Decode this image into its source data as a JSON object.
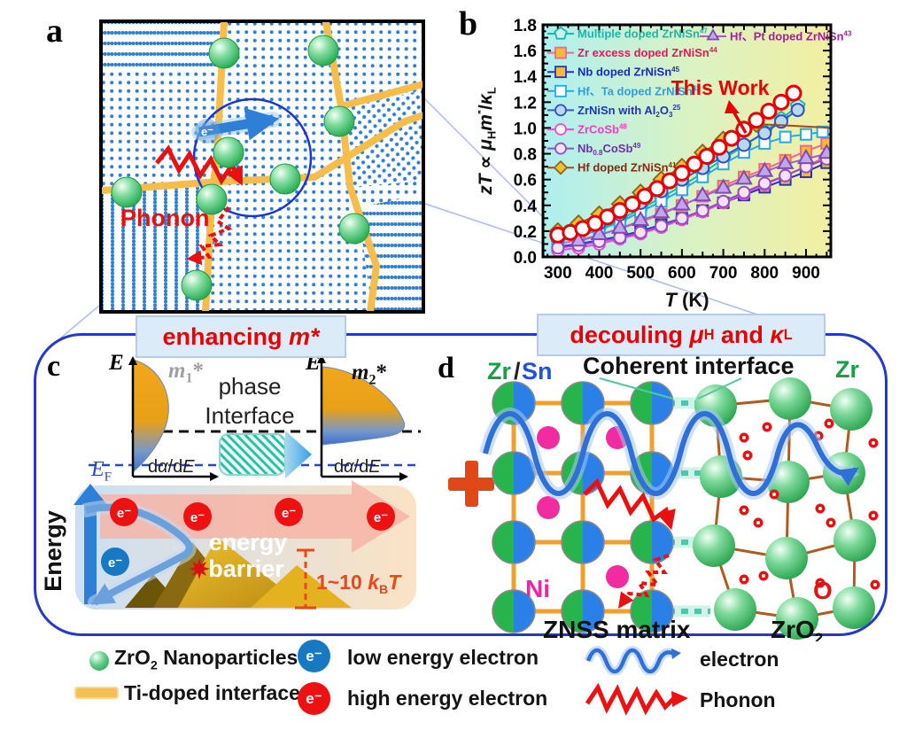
{
  "symbols": {
    "electron": "e⁻"
  },
  "panel_a": {
    "label": "a",
    "phonon": "Phonon"
  },
  "panel_b": {
    "label": "b"
  },
  "panel_c": {
    "label": "c",
    "e_axis": "E",
    "m1_segments": [
      {
        "t": "m",
        "i": true,
        "b": true
      },
      {
        "t": "1",
        "sub": true,
        "b": true
      },
      {
        "t": "*",
        "b": true
      }
    ],
    "m2_segments": [
      {
        "t": "m",
        "i": true,
        "b": true
      },
      {
        "t": "2",
        "sub": true,
        "b": true
      },
      {
        "t": "*",
        "b": true
      }
    ],
    "phase1": "phase",
    "phase2": "Interface",
    "dade_segments": [
      {
        "t": "d"
      },
      {
        "t": "α",
        "i": true
      },
      {
        "t": "/d"
      },
      {
        "t": "E",
        "i": true
      }
    ],
    "ef_segments": [
      {
        "t": "E",
        "i": true
      },
      {
        "t": "F",
        "sub": true
      }
    ],
    "energy": "Energy",
    "barrier1": "energy",
    "barrier2": "barrier",
    "kbt_segments": [
      {
        "t": "1~10 ",
        "b": true
      },
      {
        "t": "k",
        "i": true,
        "b": true
      },
      {
        "t": "B",
        "sub": true,
        "b": true
      },
      {
        "t": "T",
        "i": true,
        "b": true
      }
    ]
  },
  "panel_d": {
    "label": "d",
    "zr": "Zr",
    "slash": "/",
    "sn": "Sn",
    "coherent": "Coherent interface",
    "zr_right": "Zr",
    "ni": "Ni",
    "o": "O",
    "znss": "ZNSS matrix",
    "zro2_segments": [
      {
        "t": "ZrO",
        "b": true
      },
      {
        "t": "2",
        "sub": true,
        "b": true
      }
    ]
  },
  "banners": {
    "left": {
      "pre": "enhancing ",
      "em": "m*"
    },
    "right": {
      "pre": "decouling ",
      "mu": "μ",
      "mu_sub": "H",
      "mid": " and ",
      "kappa": "κ",
      "kappa_sub": "L"
    }
  },
  "legend_bottom": {
    "items": [
      {
        "name": "zro2-nanoparticles",
        "segments": [
          {
            "t": "ZrO"
          },
          {
            "t": "2",
            "sub": true
          },
          {
            "t": " Nanoparticles"
          }
        ]
      },
      {
        "name": "ti-doped-interface",
        "segments": [
          {
            "t": "Ti-doped interface"
          }
        ]
      },
      {
        "name": "low-energy-electron",
        "segments": [
          {
            "t": "low energy electron"
          }
        ]
      },
      {
        "name": "high-energy-electron",
        "segments": [
          {
            "t": "high energy electron"
          }
        ]
      },
      {
        "name": "electron-wave",
        "segments": [
          {
            "t": "electron"
          }
        ]
      },
      {
        "name": "phonon",
        "segments": [
          {
            "t": "Phonon"
          }
        ]
      }
    ]
  },
  "chart_data": {
    "type": "line",
    "xlabel": "T (K)",
    "ylabel": "zT ∝ μHm*/κL",
    "xlabel_segments": [
      {
        "t": "T",
        "i": true,
        "b": true
      },
      {
        "t": " (K)",
        "b": true
      }
    ],
    "ylabel_segments": [
      {
        "t": "zT",
        "i": true,
        "b": true
      },
      {
        "t": " ∝ ",
        "b": true
      },
      {
        "t": "μ",
        "i": true,
        "b": true
      },
      {
        "t": "H",
        "sub": true,
        "b": true
      },
      {
        "t": "m",
        "i": true,
        "b": true
      },
      {
        "t": "*",
        "sup": true,
        "b": true
      },
      {
        "t": "/",
        "b": true
      },
      {
        "t": "κ",
        "i": true,
        "b": true
      },
      {
        "t": "L",
        "sub": true,
        "b": true
      }
    ],
    "xlim": [
      264,
      960
    ],
    "ylim": [
      0,
      1.8
    ],
    "xticks": [
      300,
      400,
      500,
      600,
      700,
      800,
      900
    ],
    "yticks": [
      0.0,
      0.2,
      0.4,
      0.6,
      0.8,
      1.0,
      1.2,
      1.4,
      1.6,
      1.8
    ],
    "grid": false,
    "legend_position": "upper-left-inside",
    "background_gradient": [
      "#aeeff0",
      "#d9f2c4",
      "#f2efa2"
    ],
    "annotation": {
      "text": "This Work",
      "color": "#e60000"
    },
    "series": [
      {
        "id": "multiple-doped-zrnisn",
        "name": "Multiple doped ZrNiSn47",
        "legend": "left",
        "name_segments": [
          {
            "t": "Multiple doped ZrNiSn"
          },
          {
            "t": "47",
            "sup": true
          }
        ],
        "text_color": "#18b8ac",
        "line_color": "#18b8ac",
        "marker": {
          "shape": "pentagon",
          "fill": "#ccf2ee",
          "edge": "#18b8ac",
          "size": 7
        },
        "x": [
          300,
          350,
          400,
          450,
          500,
          550,
          600,
          650,
          700,
          750,
          800,
          840,
          880
        ],
        "y": [
          0.13,
          0.17,
          0.22,
          0.29,
          0.37,
          0.46,
          0.55,
          0.65,
          0.76,
          0.86,
          0.97,
          1.07,
          1.17
        ]
      },
      {
        "id": "zr-excess-doped-zrnisn",
        "name": "Zr excess doped ZrNiSn44",
        "legend": "left",
        "name_segments": [
          {
            "t": "Zr excess doped ZrNiSn"
          },
          {
            "t": "44",
            "sup": true
          }
        ],
        "text_color": "#e8175d",
        "line_color": "#f06890",
        "marker": {
          "shape": "square",
          "fill": "#f8b838",
          "edge": "#f06890",
          "size": 6
        },
        "x": [
          300,
          350,
          400,
          450,
          500,
          550,
          600,
          650,
          700,
          750,
          800,
          850,
          900,
          950
        ],
        "y": [
          0.1,
          0.13,
          0.17,
          0.22,
          0.27,
          0.33,
          0.4,
          0.47,
          0.55,
          0.62,
          0.68,
          0.75,
          0.82,
          0.88
        ]
      },
      {
        "id": "nb-doped-zrnisn",
        "name": "Nb doped ZrNiSn45",
        "legend": "left",
        "name_segments": [
          {
            "t": "Nb doped ZrNiSn"
          },
          {
            "t": "45",
            "sup": true
          }
        ],
        "text_color": "#1a28c8",
        "line_color": "#2830c8",
        "marker": {
          "shape": "square",
          "fill": "#f8b838",
          "edge": "#2830c8",
          "size": 6
        },
        "x": [
          300,
          350,
          400,
          450,
          500,
          550,
          600,
          650,
          700,
          750,
          800,
          850,
          900,
          950
        ],
        "y": [
          0.08,
          0.1,
          0.13,
          0.16,
          0.2,
          0.25,
          0.3,
          0.36,
          0.42,
          0.48,
          0.54,
          0.6,
          0.66,
          0.73
        ]
      },
      {
        "id": "hf-ta-doped-zrnisn",
        "name": "Hf、Ta doped ZrNiSn42",
        "legend": "left",
        "name_segments": [
          {
            "t": "Hf、Ta doped ZrNiSn"
          },
          {
            "t": "42",
            "sup": true
          }
        ],
        "text_color": "#28a0e8",
        "line_color": "#28a8e8",
        "marker": {
          "shape": "square",
          "fill": "#ffffff",
          "edge": "#28a8e8",
          "size": 6
        },
        "x": [
          300,
          350,
          400,
          450,
          500,
          550,
          600,
          650,
          700,
          750,
          800,
          850,
          900,
          940
        ],
        "y": [
          0.12,
          0.16,
          0.21,
          0.27,
          0.35,
          0.43,
          0.52,
          0.62,
          0.72,
          0.81,
          0.88,
          0.93,
          0.95,
          0.97
        ]
      },
      {
        "id": "zrnisn-with-al2o3",
        "name": "ZrNiSn with Al2O325",
        "legend": "left",
        "name_segments": [
          {
            "t": "ZrNiSn with Al"
          },
          {
            "t": "2",
            "sub": true
          },
          {
            "t": "O"
          },
          {
            "t": "3",
            "sub": true
          },
          {
            "t": "25",
            "sup": true
          }
        ],
        "text_color": "#2038a8",
        "line_color": "#3858c8",
        "marker": {
          "shape": "circle",
          "fill": "#b8d8f0",
          "edge": "#3050c0",
          "size": 7
        },
        "x": [
          300,
          350,
          400,
          450,
          500,
          550,
          600,
          650,
          700,
          750,
          800,
          840,
          880
        ],
        "y": [
          0.15,
          0.2,
          0.26,
          0.33,
          0.42,
          0.51,
          0.6,
          0.69,
          0.78,
          0.87,
          0.96,
          1.05,
          1.14
        ]
      },
      {
        "id": "zrcosb",
        "name": "ZrCoSb48",
        "legend": "left",
        "name_segments": [
          {
            "t": "ZrCoSb"
          },
          {
            "t": "48",
            "sup": true
          }
        ],
        "text_color": "#f838c8",
        "line_color": "#f848d8",
        "marker": {
          "shape": "circle",
          "fill": "#ffffff",
          "edge": "#f848d8",
          "size": 6.5
        },
        "x": [
          300,
          350,
          400,
          450,
          500,
          550,
          600,
          650,
          700,
          750,
          800,
          850,
          900,
          950
        ],
        "y": [
          0.05,
          0.07,
          0.1,
          0.14,
          0.18,
          0.23,
          0.29,
          0.35,
          0.42,
          0.49,
          0.56,
          0.63,
          0.7,
          0.78
        ]
      },
      {
        "id": "nb08cosb",
        "name": "Nb0.8CoSb49",
        "legend": "left",
        "name_segments": [
          {
            "t": "Nb"
          },
          {
            "t": "0.8",
            "sub": true
          },
          {
            "t": "CoSb"
          },
          {
            "t": "49",
            "sup": true
          }
        ],
        "text_color": "#7030a8",
        "line_color": "#9050c0",
        "marker": {
          "shape": "circle",
          "fill": "#f8e2f8",
          "edge": "#9050c0",
          "size": 6.5
        },
        "x": [
          300,
          350,
          400,
          450,
          500,
          550,
          600,
          650,
          700,
          750,
          800,
          850,
          900,
          950
        ],
        "y": [
          0.07,
          0.09,
          0.12,
          0.15,
          0.19,
          0.24,
          0.3,
          0.36,
          0.43,
          0.5,
          0.57,
          0.63,
          0.7,
          0.76
        ]
      },
      {
        "id": "hf-doped-zrnisn",
        "name": "Hf doped ZrNiSn41",
        "legend": "left",
        "name_segments": [
          {
            "t": "Hf doped ZrNiSn"
          },
          {
            "t": "41",
            "sup": true
          }
        ],
        "text_color": "#8a2810",
        "line_color": "#a84818",
        "marker_until": 800,
        "marker": {
          "shape": "diamond",
          "fill": "#f0c030",
          "edge": "#8a6820",
          "size": 7.5
        },
        "x": [
          300,
          350,
          400,
          450,
          500,
          550,
          600,
          650,
          700,
          750,
          780,
          850,
          960
        ],
        "y": [
          0.2,
          0.26,
          0.33,
          0.41,
          0.5,
          0.6,
          0.7,
          0.81,
          0.91,
          0.99,
          1.03,
          1.02,
          1.0
        ]
      },
      {
        "id": "hf-pt-doped-zrnisn",
        "name": "Hf、Pt doped ZrNiSn43",
        "legend": "right",
        "name_segments": [
          {
            "t": "Hf、Pt doped ZrNiSn"
          },
          {
            "t": "43",
            "sup": true
          }
        ],
        "text_color": "#a020a0",
        "line_color": "#a060d0",
        "marker": {
          "shape": "triangle",
          "fill": "#c0a8e8",
          "edge": "#8048b8",
          "size": 8
        },
        "x": [
          350,
          400,
          450,
          500,
          550,
          600,
          650,
          700,
          750,
          800,
          850,
          900,
          950
        ],
        "y": [
          0.12,
          0.17,
          0.22,
          0.28,
          0.34,
          0.4,
          0.47,
          0.53,
          0.6,
          0.66,
          0.72,
          0.76,
          0.8
        ]
      },
      {
        "id": "this-work",
        "name": "This Work",
        "legend": "none",
        "name_segments": [
          {
            "t": "This Work"
          }
        ],
        "text_color": "#e60000",
        "line_color": "#e60000",
        "line_width": 3,
        "marker": {
          "shape": "circle",
          "fill": "#ffffff",
          "edge": "#e60000",
          "size": 8,
          "edge_width": 3
        },
        "x": [
          300,
          330,
          360,
          390,
          420,
          450,
          480,
          510,
          540,
          570,
          600,
          630,
          660,
          690,
          720,
          750,
          780,
          810,
          840,
          870
        ],
        "y": [
          0.17,
          0.19,
          0.22,
          0.26,
          0.31,
          0.36,
          0.41,
          0.47,
          0.53,
          0.59,
          0.65,
          0.72,
          0.78,
          0.85,
          0.92,
          0.99,
          1.06,
          1.13,
          1.2,
          1.27
        ]
      }
    ]
  }
}
